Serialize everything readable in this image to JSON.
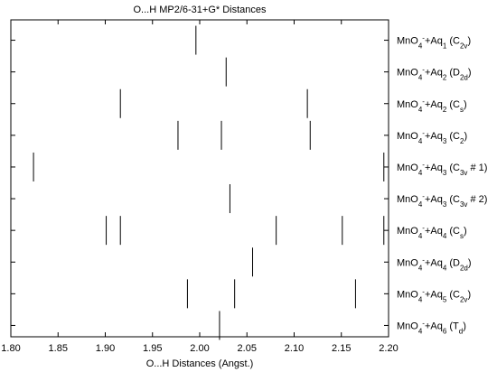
{
  "chart_data": {
    "type": "strip",
    "title": "O...H MP2/6-31+G* Distances",
    "x_label": "O...H Distances (Angst.)",
    "color": "#000000",
    "xlim": [
      1.8,
      2.2
    ],
    "xticks": [
      {
        "value": 1.8,
        "label": "1.80"
      },
      {
        "value": 1.85,
        "label": "1.85"
      },
      {
        "value": 1.9,
        "label": "1.90"
      },
      {
        "value": 1.95,
        "label": "1.95"
      },
      {
        "value": 2.0,
        "label": "2.00"
      },
      {
        "value": 2.05,
        "label": "2.05"
      },
      {
        "value": 2.1,
        "label": "2.10"
      },
      {
        "value": 2.15,
        "label": "2.15"
      },
      {
        "value": 2.2,
        "label": "2.20"
      }
    ],
    "categories": [
      [
        [
          "MnO",
          "n"
        ],
        [
          "4",
          "b"
        ],
        [
          "-",
          "p"
        ],
        [
          "+Aq",
          "n"
        ],
        [
          "1",
          "b"
        ],
        [
          " (C",
          "n"
        ],
        [
          "2v",
          "b"
        ],
        [
          ")",
          "n"
        ]
      ],
      [
        [
          "MnO",
          "n"
        ],
        [
          "4",
          "b"
        ],
        [
          "-",
          "p"
        ],
        [
          "+Aq",
          "n"
        ],
        [
          "2",
          "b"
        ],
        [
          " (D",
          "n"
        ],
        [
          "2d",
          "b"
        ],
        [
          ")",
          "n"
        ]
      ],
      [
        [
          "MnO",
          "n"
        ],
        [
          "4",
          "b"
        ],
        [
          "-",
          "p"
        ],
        [
          "+Aq",
          "n"
        ],
        [
          "2",
          "b"
        ],
        [
          " (C",
          "n"
        ],
        [
          "s",
          "b"
        ],
        [
          ")",
          "n"
        ]
      ],
      [
        [
          "MnO",
          "n"
        ],
        [
          "4",
          "b"
        ],
        [
          "-",
          "p"
        ],
        [
          "+Aq",
          "n"
        ],
        [
          "3",
          "b"
        ],
        [
          " (C",
          "n"
        ],
        [
          "2",
          "b"
        ],
        [
          ")",
          "n"
        ]
      ],
      [
        [
          "MnO",
          "n"
        ],
        [
          "4",
          "b"
        ],
        [
          "-",
          "p"
        ],
        [
          "+Aq",
          "n"
        ],
        [
          "3",
          "b"
        ],
        [
          " (C",
          "n"
        ],
        [
          "3v",
          "b"
        ],
        [
          " # 1)",
          "n"
        ]
      ],
      [
        [
          "MnO",
          "n"
        ],
        [
          "4",
          "b"
        ],
        [
          "-",
          "p"
        ],
        [
          "+Aq",
          "n"
        ],
        [
          "3",
          "b"
        ],
        [
          " (C",
          "n"
        ],
        [
          "3v",
          "b"
        ],
        [
          " # 2)",
          "n"
        ]
      ],
      [
        [
          "MnO",
          "n"
        ],
        [
          "4",
          "b"
        ],
        [
          "-",
          "p"
        ],
        [
          "+Aq",
          "n"
        ],
        [
          "4",
          "b"
        ],
        [
          " (C",
          "n"
        ],
        [
          "s",
          "b"
        ],
        [
          ")",
          "n"
        ]
      ],
      [
        [
          "MnO",
          "n"
        ],
        [
          "4",
          "b"
        ],
        [
          "-",
          "p"
        ],
        [
          "+Aq",
          "n"
        ],
        [
          "4",
          "b"
        ],
        [
          " (D",
          "n"
        ],
        [
          "2d",
          "b"
        ],
        [
          ")",
          "n"
        ]
      ],
      [
        [
          "MnO",
          "n"
        ],
        [
          "4",
          "b"
        ],
        [
          "-",
          "p"
        ],
        [
          "+Aq",
          "n"
        ],
        [
          "5",
          "b"
        ],
        [
          " (C",
          "n"
        ],
        [
          "2v",
          "b"
        ],
        [
          ")",
          "n"
        ]
      ],
      [
        [
          "MnO",
          "n"
        ],
        [
          "4",
          "b"
        ],
        [
          "-",
          "p"
        ],
        [
          "+Aq",
          "n"
        ],
        [
          "6",
          "b"
        ],
        [
          " (T",
          "n"
        ],
        [
          "d",
          "b"
        ],
        [
          ")",
          "n"
        ]
      ]
    ],
    "values": [
      [
        1.996
      ],
      [
        2.028
      ],
      [
        1.916,
        2.114
      ],
      [
        1.977,
        2.023,
        2.117
      ],
      [
        1.824,
        2.195
      ],
      [
        2.032
      ],
      [
        1.901,
        1.916,
        2.081,
        2.151,
        2.195
      ],
      [
        2.056
      ],
      [
        1.987,
        2.037,
        2.165
      ],
      [
        2.021
      ]
    ]
  }
}
